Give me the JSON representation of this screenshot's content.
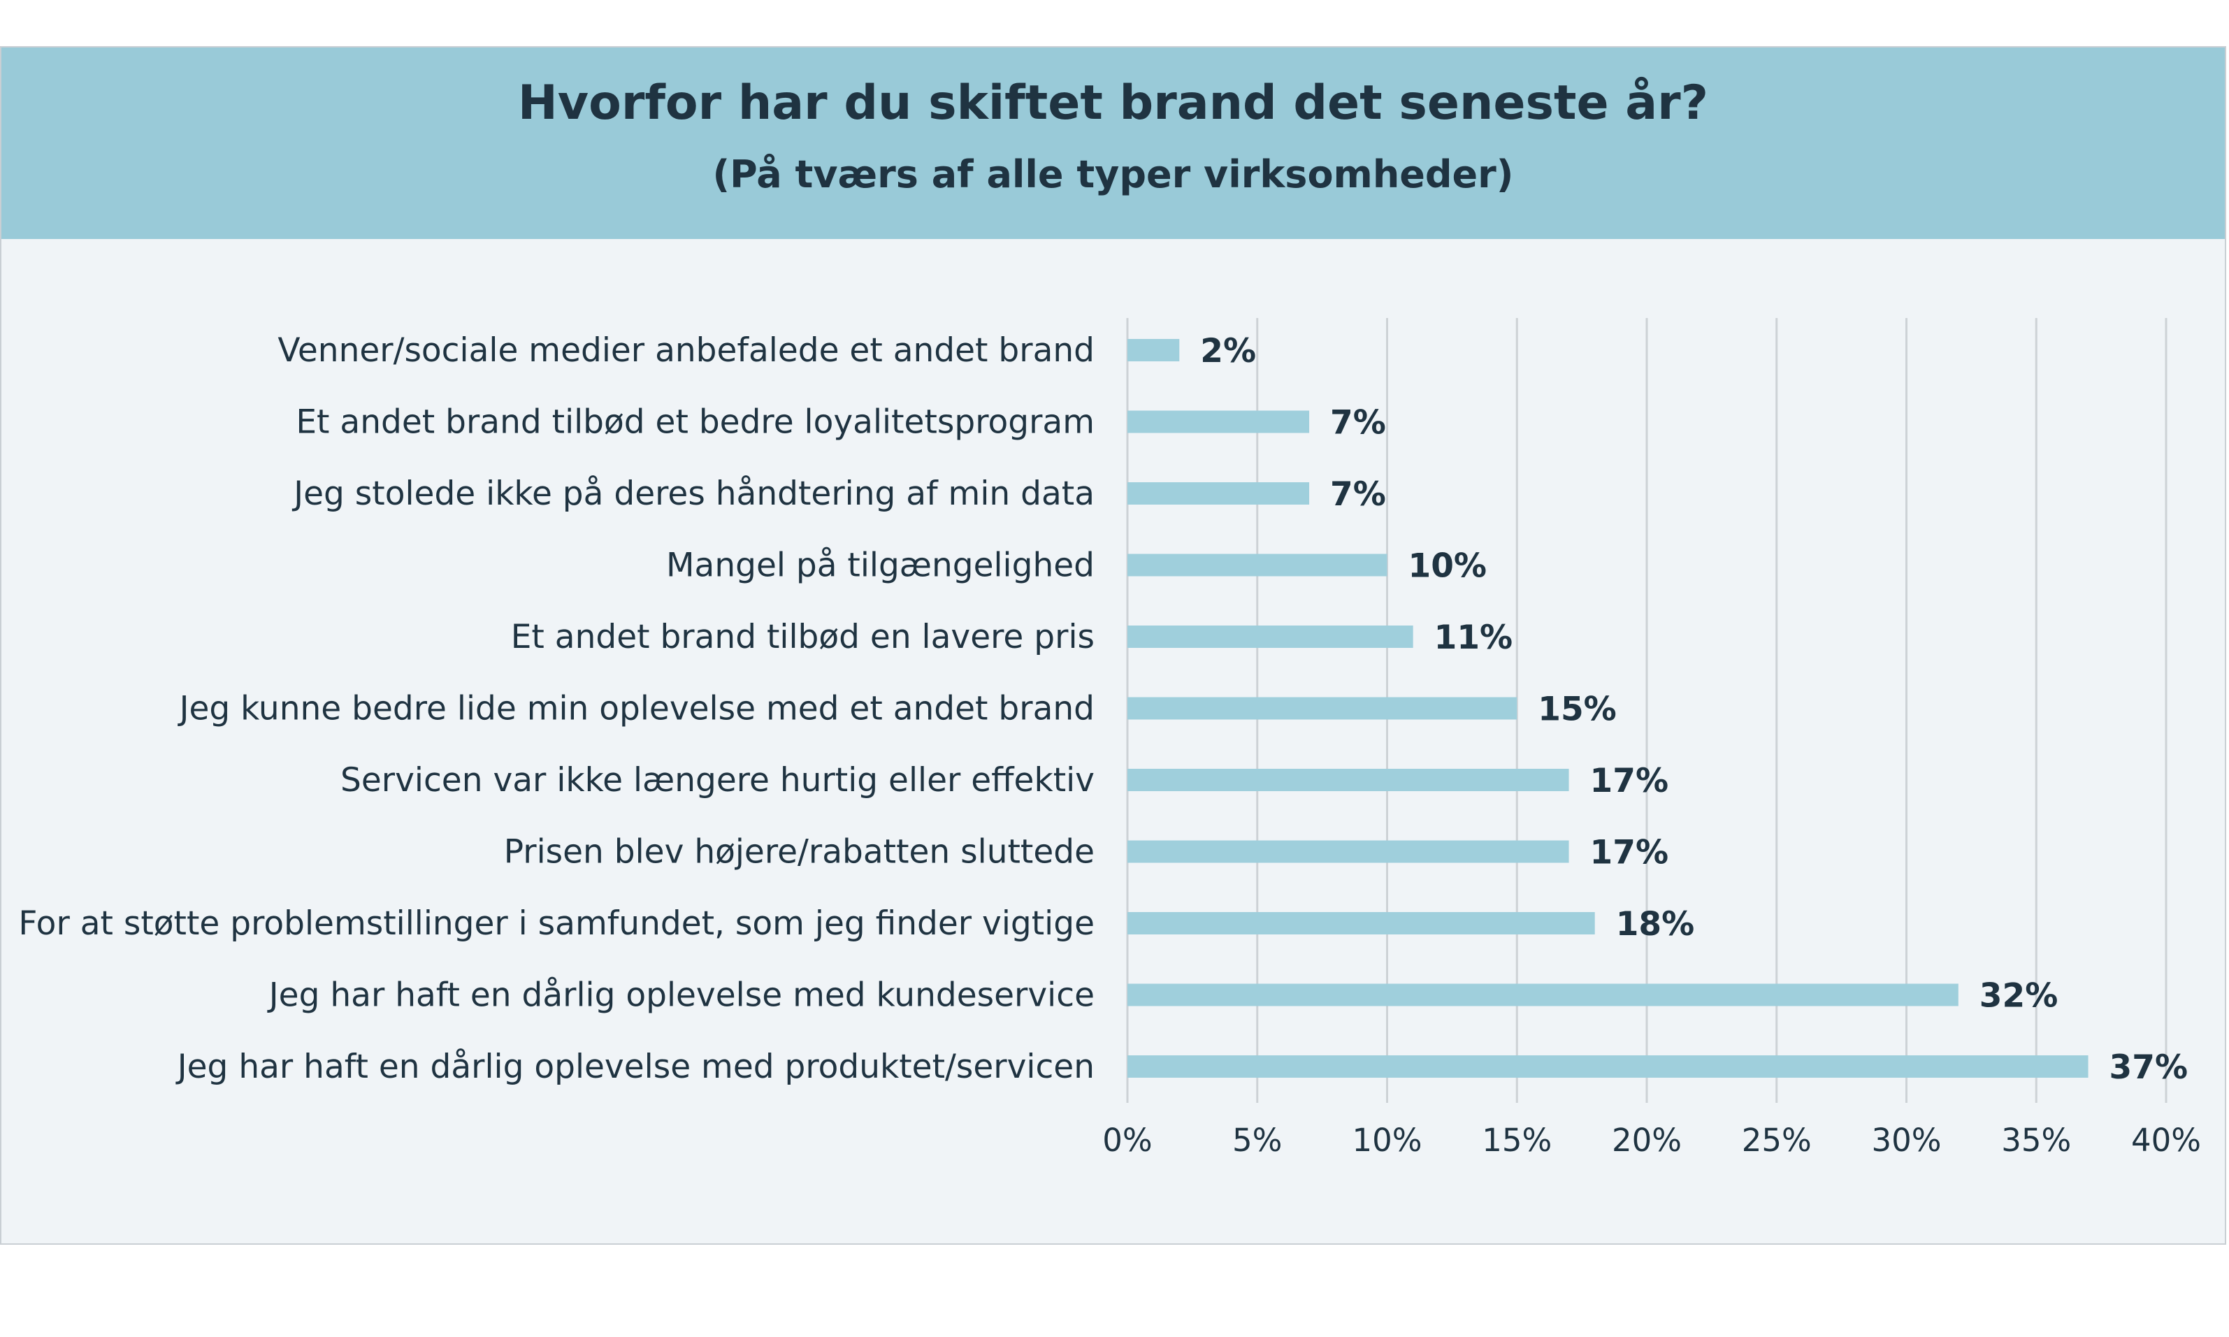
{
  "chart_data": {
    "type": "bar",
    "orientation": "horizontal",
    "title": "Hvorfor har du skiftet brand det seneste år?",
    "subtitle": "(På tværs af alle typer virksomheder)",
    "categories": [
      "Venner/sociale medier anbefalede et andet brand",
      "Et andet brand tilbød et bedre loyalitetsprogram",
      "Jeg stolede ikke på deres håndtering af min data",
      "Mangel på tilgængelighed",
      "Et andet brand tilbød en lavere pris",
      "Jeg kunne bedre lide min oplevelse med et andet brand",
      "Servicen var ikke længere hurtig eller effektiv",
      "Prisen blev højere/rabatten sluttede",
      "For at støtte problemstillinger i samfundet, som jeg finder vigtige",
      "Jeg har haft en dårlig oplevelse med kundeservice",
      "Jeg har haft en dårlig oplevelse med produktet/servicen"
    ],
    "values": [
      2,
      7,
      7,
      10,
      11,
      15,
      17,
      17,
      18,
      32,
      37
    ],
    "value_labels": [
      "2%",
      "7%",
      "7%",
      "10%",
      "11%",
      "15%",
      "17%",
      "17%",
      "18%",
      "32%",
      "37%"
    ],
    "xlim": [
      0,
      40
    ],
    "x_ticks": [
      0,
      5,
      10,
      15,
      20,
      25,
      30,
      35,
      40
    ],
    "x_tick_labels": [
      "0%",
      "5%",
      "10%",
      "15%",
      "20%",
      "25%",
      "30%",
      "35%",
      "40%"
    ],
    "grid": true,
    "legend": "none",
    "bar_color": "#9fcfdc",
    "header_color": "#99cad8",
    "background_color": "#f0f4f7",
    "text_color": "#1f3341",
    "grid_color": "#cdd2d6"
  }
}
